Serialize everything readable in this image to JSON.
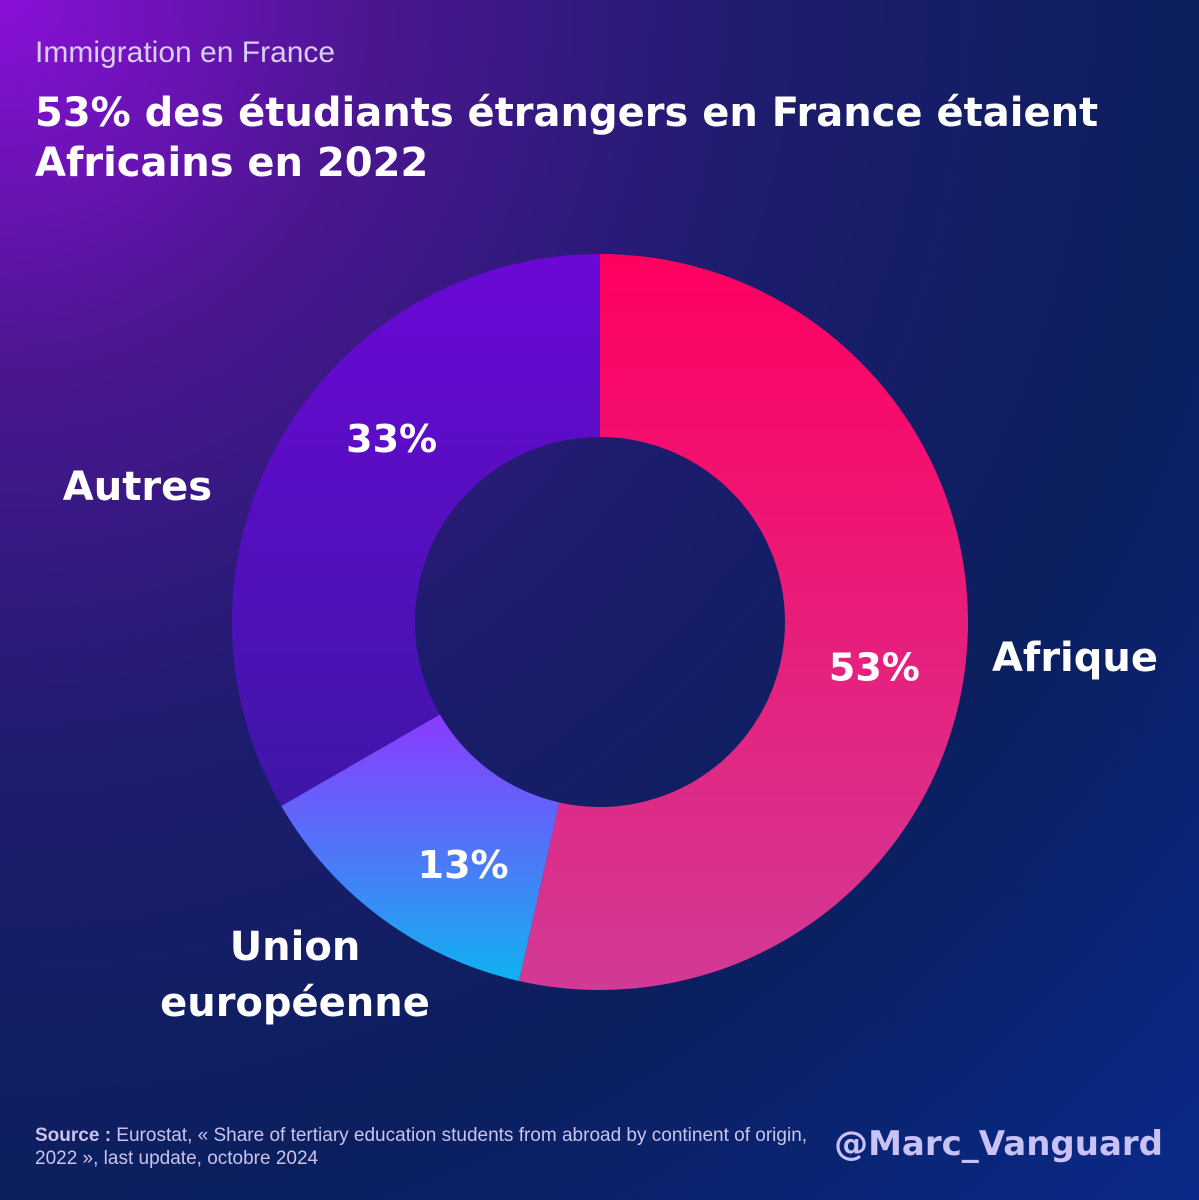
{
  "header": {
    "kicker": "Immigration en France",
    "title": "53% des étudiants étrangers en France étaient Africains en 2022"
  },
  "chart_data": {
    "type": "pie",
    "donut": true,
    "categories": [
      "Afrique",
      "Union européenne",
      "Autres"
    ],
    "values": [
      53,
      13,
      33
    ],
    "value_labels": [
      "53%",
      "13%",
      "33%"
    ],
    "colors": [
      "#ff0a60",
      "#3f7cf6",
      "#6a0ad6"
    ],
    "title": "53% des étudiants étrangers en France étaient Africains en 2022"
  },
  "labels": {
    "africa": "Afrique",
    "eu_line1": "Union",
    "eu_line2": "européenne",
    "others": "Autres"
  },
  "footer": {
    "source_label": "Source :",
    "source_text": " Eurostat, « Share of tertiary education students from abroad by continent of origin, 2022 », last update, octobre 2024",
    "handle": "@Marc_Vanguard"
  }
}
